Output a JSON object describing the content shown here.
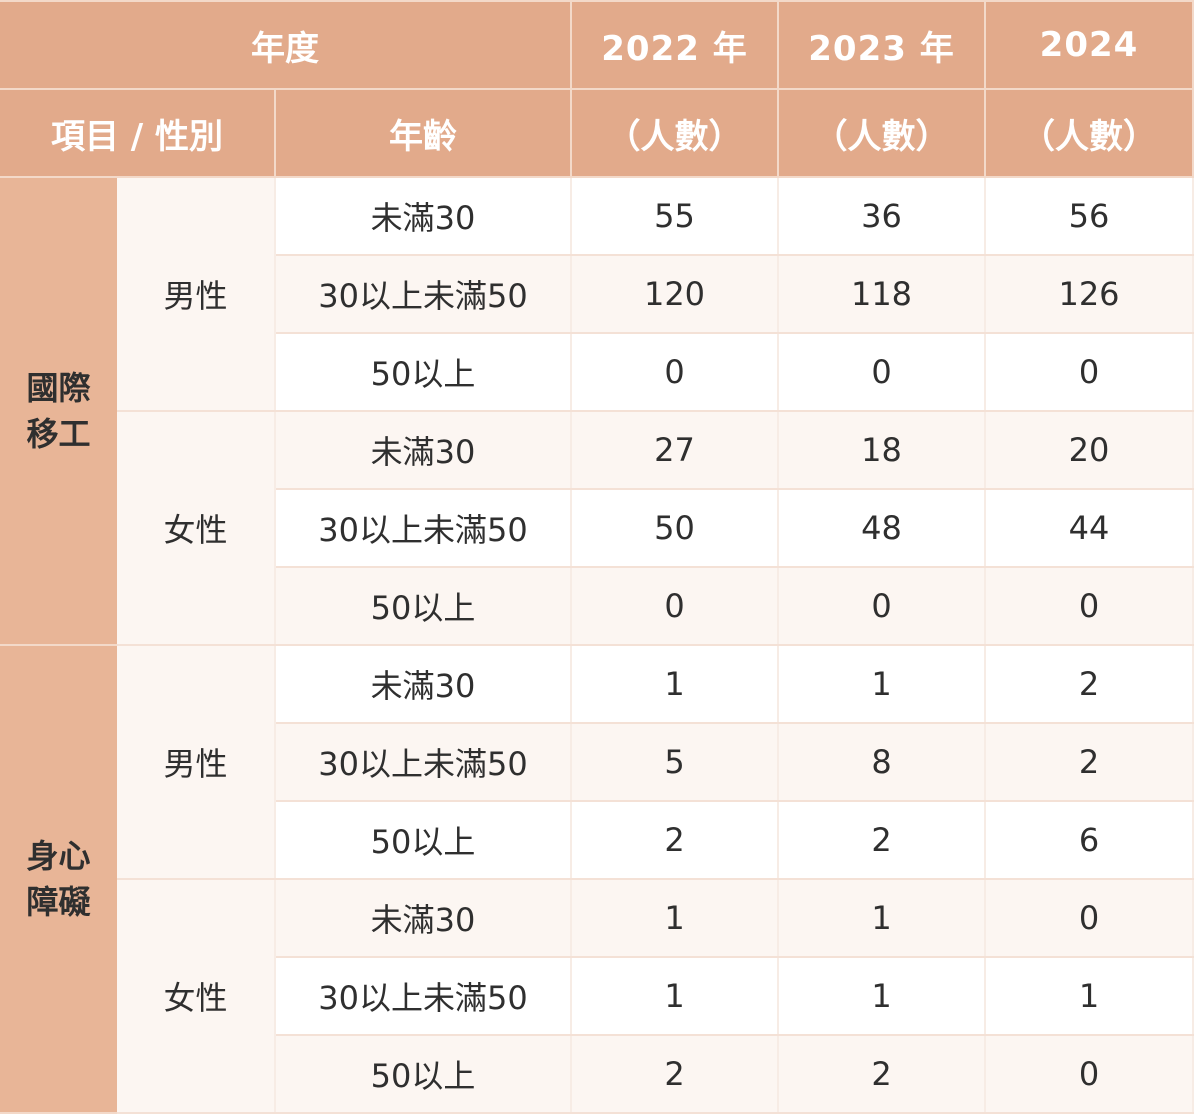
{
  "header": {
    "year_label": "年度",
    "years": [
      "2022 年",
      "2023 年",
      "2024"
    ],
    "item_gender_label": "項目 / 性別",
    "age_label": "年齡",
    "unit_labels": [
      "（人數）",
      "（人數）",
      "（人數）"
    ]
  },
  "groups": [
    {
      "category_lines": [
        "國際",
        "移工"
      ],
      "genders": [
        {
          "label": "男性",
          "rows": [
            {
              "age": "未滿30",
              "values": [
                "55",
                "36",
                "56"
              ]
            },
            {
              "age": "30以上未滿50",
              "values": [
                "120",
                "118",
                "126"
              ]
            },
            {
              "age": "50以上",
              "values": [
                "0",
                "0",
                "0"
              ]
            }
          ]
        },
        {
          "label": "女性",
          "rows": [
            {
              "age": "未滿30",
              "values": [
                "27",
                "18",
                "20"
              ]
            },
            {
              "age": "30以上未滿50",
              "values": [
                "50",
                "48",
                "44"
              ]
            },
            {
              "age": "50以上",
              "values": [
                "0",
                "0",
                "0"
              ]
            }
          ]
        }
      ]
    },
    {
      "category_lines": [
        "身心",
        "障礙"
      ],
      "genders": [
        {
          "label": "男性",
          "rows": [
            {
              "age": "未滿30",
              "values": [
                "1",
                "1",
                "2"
              ]
            },
            {
              "age": "30以上未滿50",
              "values": [
                "5",
                "8",
                "2"
              ]
            },
            {
              "age": "50以上",
              "values": [
                "2",
                "2",
                "6"
              ]
            }
          ]
        },
        {
          "label": "女性",
          "rows": [
            {
              "age": "未滿30",
              "values": [
                "1",
                "1",
                "0"
              ]
            },
            {
              "age": "30以上未滿50",
              "values": [
                "1",
                "1",
                "1"
              ]
            },
            {
              "age": "50以上",
              "values": [
                "2",
                "2",
                "0"
              ]
            }
          ]
        }
      ]
    }
  ]
}
